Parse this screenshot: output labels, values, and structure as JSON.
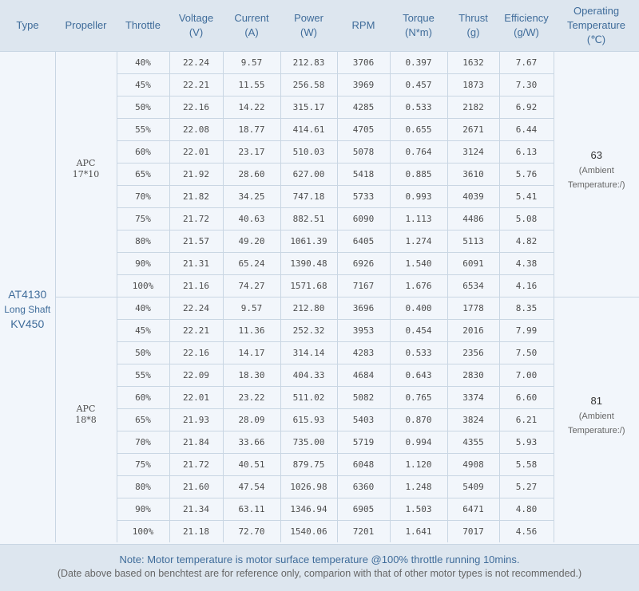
{
  "headers": [
    [
      "Type"
    ],
    [
      "Propeller"
    ],
    [
      "Throttle"
    ],
    [
      "Voltage",
      "(V)"
    ],
    [
      "Current",
      "(A)"
    ],
    [
      "Power",
      "(W)"
    ],
    [
      "RPM"
    ],
    [
      "Torque",
      "(N*m)"
    ],
    [
      "Thrust",
      "(g)"
    ],
    [
      "Efficiency",
      "(g/W)"
    ],
    [
      "Operating",
      "Temperature",
      "(℃)"
    ]
  ],
  "type_label": [
    "AT4130",
    "Long Shaft",
    "KV450"
  ],
  "groups": [
    {
      "propeller": [
        "APC",
        "17*10"
      ],
      "temperature": "63",
      "temperature_note": [
        "(Ambient",
        "Temperature:/)"
      ],
      "rows": [
        [
          "40%",
          "22.24",
          "9.57",
          "212.83",
          "3706",
          "0.397",
          "1632",
          "7.67"
        ],
        [
          "45%",
          "22.21",
          "11.55",
          "256.58",
          "3969",
          "0.457",
          "1873",
          "7.30"
        ],
        [
          "50%",
          "22.16",
          "14.22",
          "315.17",
          "4285",
          "0.533",
          "2182",
          "6.92"
        ],
        [
          "55%",
          "22.08",
          "18.77",
          "414.61",
          "4705",
          "0.655",
          "2671",
          "6.44"
        ],
        [
          "60%",
          "22.01",
          "23.17",
          "510.03",
          "5078",
          "0.764",
          "3124",
          "6.13"
        ],
        [
          "65%",
          "21.92",
          "28.60",
          "627.00",
          "5418",
          "0.885",
          "3610",
          "5.76"
        ],
        [
          "70%",
          "21.82",
          "34.25",
          "747.18",
          "5733",
          "0.993",
          "4039",
          "5.41"
        ],
        [
          "75%",
          "21.72",
          "40.63",
          "882.51",
          "6090",
          "1.113",
          "4486",
          "5.08"
        ],
        [
          "80%",
          "21.57",
          "49.20",
          "1061.39",
          "6405",
          "1.274",
          "5113",
          "4.82"
        ],
        [
          "90%",
          "21.31",
          "65.24",
          "1390.48",
          "6926",
          "1.540",
          "6091",
          "4.38"
        ],
        [
          "100%",
          "21.16",
          "74.27",
          "1571.68",
          "7167",
          "1.676",
          "6534",
          "4.16"
        ]
      ]
    },
    {
      "propeller": [
        "APC",
        "18*8"
      ],
      "temperature": "81",
      "temperature_note": [
        "(Ambient",
        "Temperature:/)"
      ],
      "rows": [
        [
          "40%",
          "22.24",
          "9.57",
          "212.80",
          "3696",
          "0.400",
          "1778",
          "8.35"
        ],
        [
          "45%",
          "22.21",
          "11.36",
          "252.32",
          "3953",
          "0.454",
          "2016",
          "7.99"
        ],
        [
          "50%",
          "22.16",
          "14.17",
          "314.14",
          "4283",
          "0.533",
          "2356",
          "7.50"
        ],
        [
          "55%",
          "22.09",
          "18.30",
          "404.33",
          "4684",
          "0.643",
          "2830",
          "7.00"
        ],
        [
          "60%",
          "22.01",
          "23.22",
          "511.02",
          "5082",
          "0.765",
          "3374",
          "6.60"
        ],
        [
          "65%",
          "21.93",
          "28.09",
          "615.93",
          "5403",
          "0.870",
          "3824",
          "6.21"
        ],
        [
          "70%",
          "21.84",
          "33.66",
          "735.00",
          "5719",
          "0.994",
          "4355",
          "5.93"
        ],
        [
          "75%",
          "21.72",
          "40.51",
          "879.75",
          "6048",
          "1.120",
          "4908",
          "5.58"
        ],
        [
          "80%",
          "21.60",
          "47.54",
          "1026.98",
          "6360",
          "1.248",
          "5409",
          "5.27"
        ],
        [
          "90%",
          "21.34",
          "63.11",
          "1346.94",
          "6905",
          "1.503",
          "6471",
          "4.80"
        ],
        [
          "100%",
          "21.18",
          "72.70",
          "1540.06",
          "7201",
          "1.641",
          "7017",
          "4.56"
        ]
      ]
    }
  ],
  "footer": {
    "note": "Note: Motor temperature is motor surface temperature @100% throttle running 10mins.",
    "disclaimer": "(Date above based on benchtest are for reference only, comparion with that of other motor types is not recommended.)"
  },
  "colors": {
    "header_bg": "#dde6ef",
    "header_text": "#3f6c9a",
    "body_bg": "#f2f6fb",
    "grid": "#c9d6e3"
  }
}
